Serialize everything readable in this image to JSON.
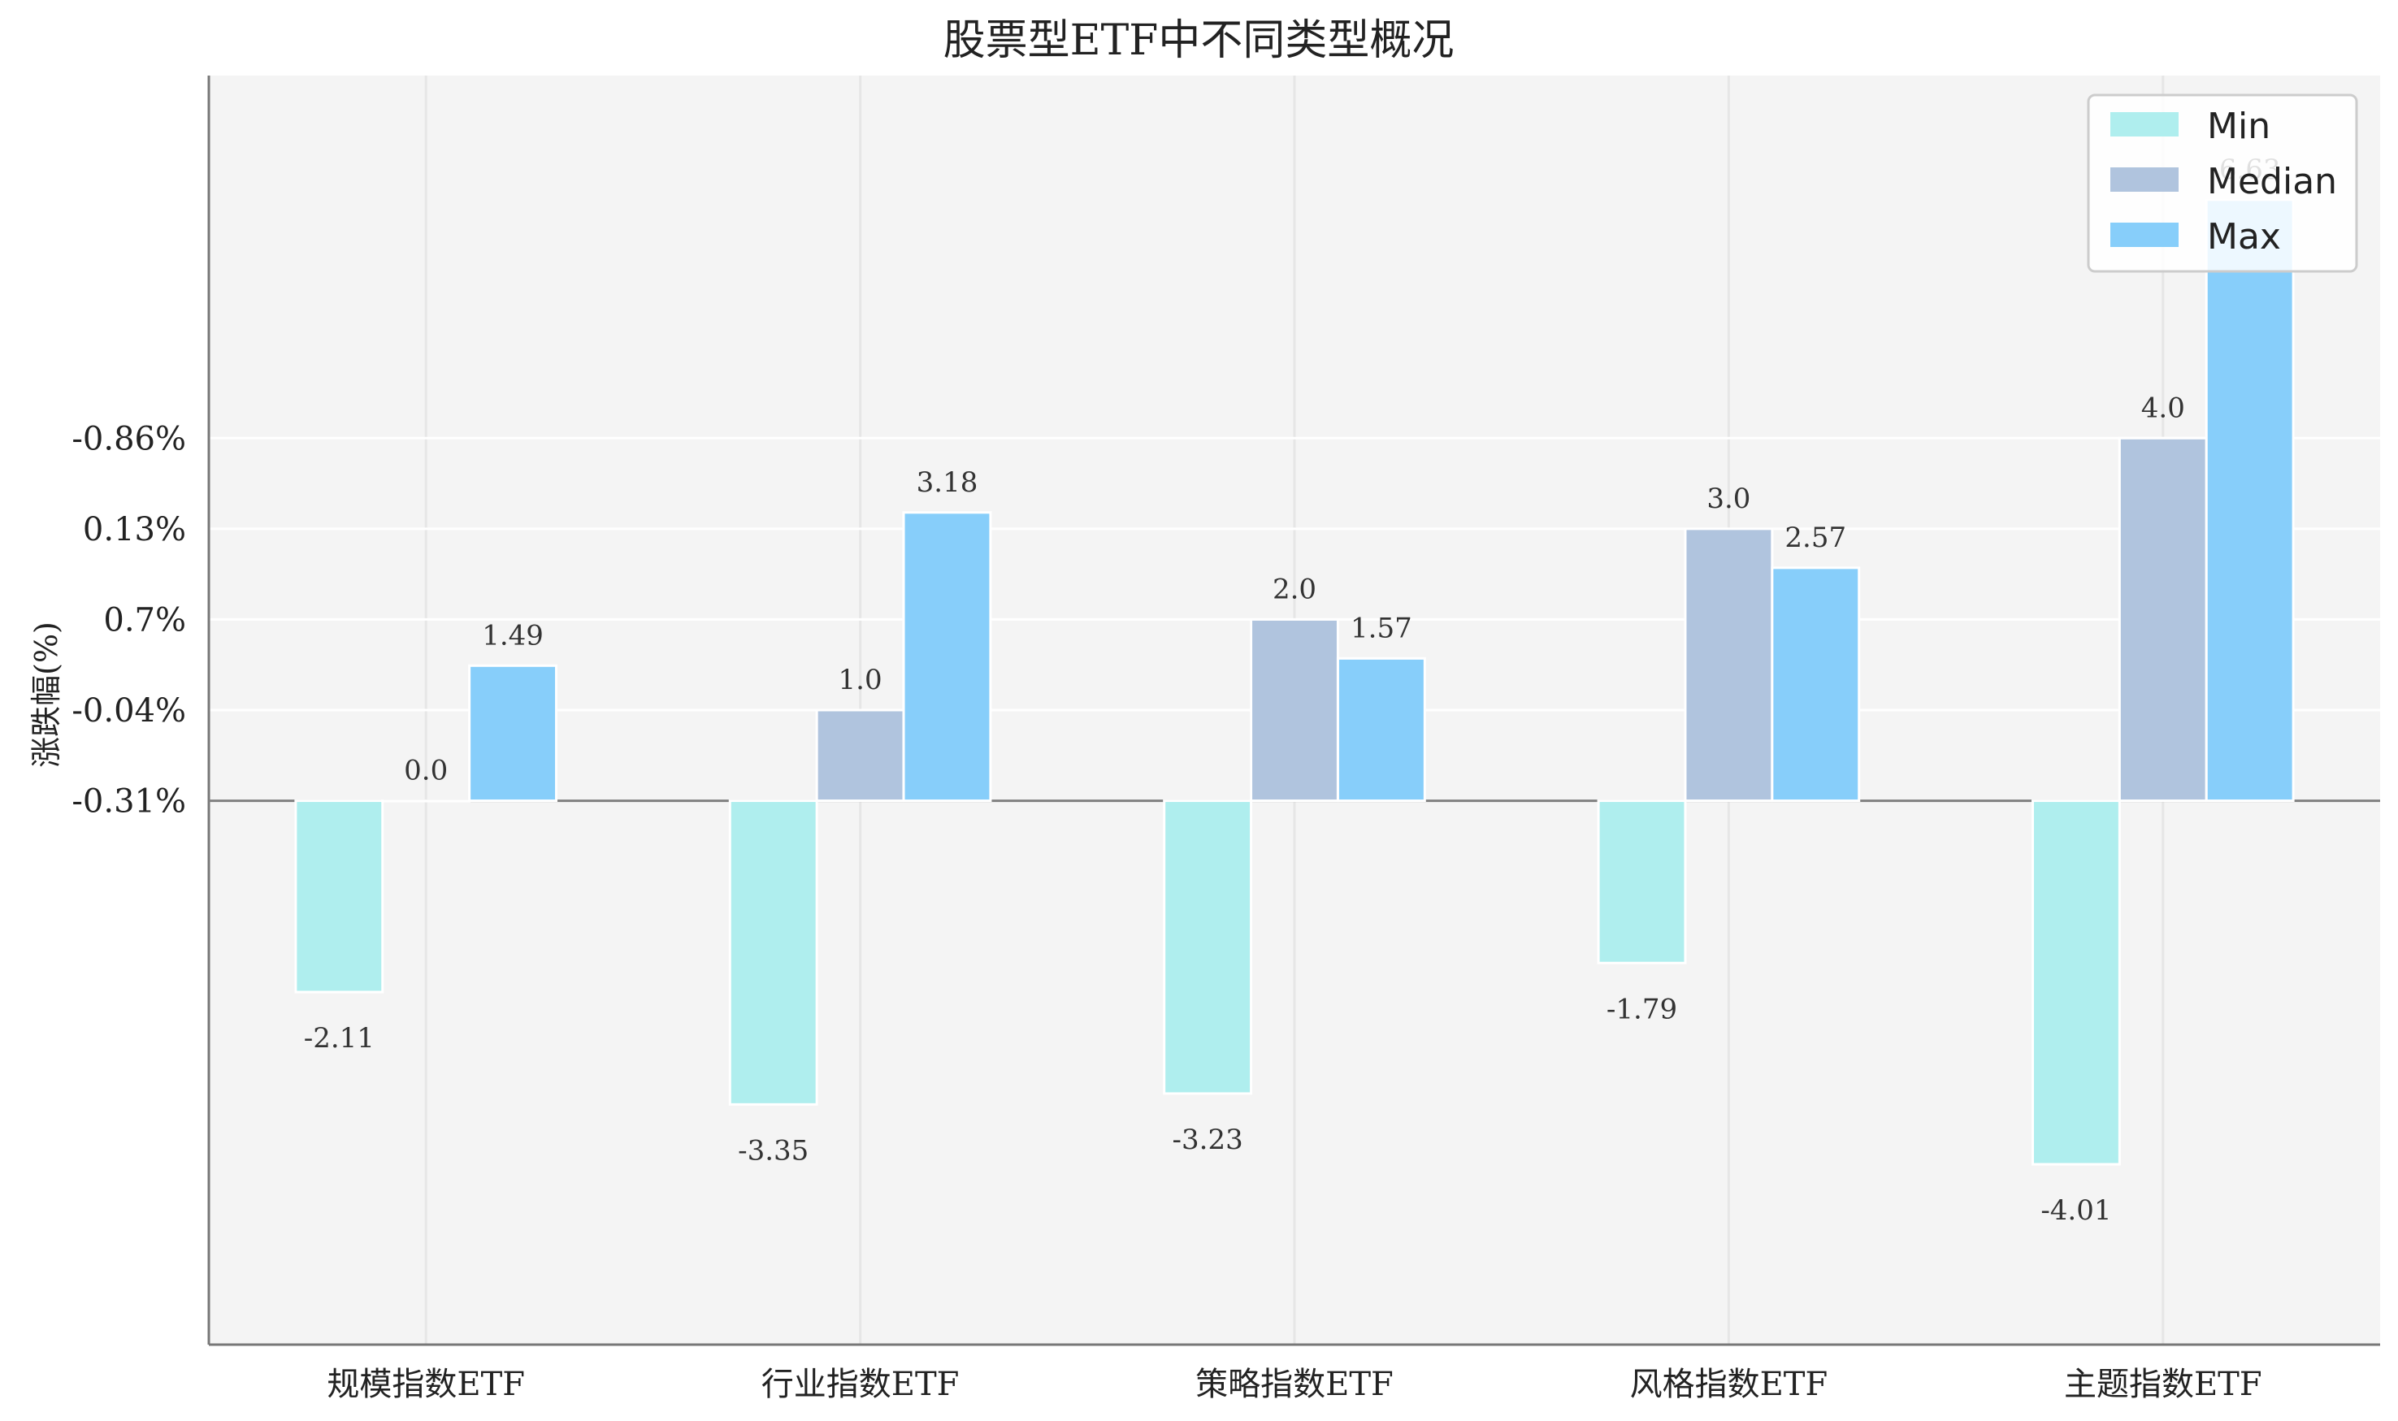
{
  "chart_data": {
    "type": "bar",
    "title": "股票型ETF中不同类型概况",
    "xlabel": "",
    "ylabel": "涨跌幅(%)",
    "categories": [
      "规模指数ETF",
      "行业指数ETF",
      "策略指数ETF",
      "风格指数ETF",
      "主题指数ETF"
    ],
    "series": [
      {
        "name": "Min",
        "values": [
          -2.11,
          -3.35,
          -3.23,
          -1.79,
          -4.01
        ],
        "color": "#AFEEEE"
      },
      {
        "name": "Median",
        "values": [
          0.0,
          1.0,
          2.0,
          3.0,
          4.0
        ],
        "color": "#B0C4DE"
      },
      {
        "name": "Max",
        "values": [
          1.49,
          3.18,
          1.57,
          2.57,
          6.63
        ],
        "color": "#87CEFA"
      }
    ],
    "data_labels": [
      [
        "-2.11",
        "-3.35",
        "-3.23",
        "-1.79",
        "-4.01"
      ],
      [
        "0.0",
        "1.0",
        "2.0",
        "3.0",
        "4.0"
      ],
      [
        "1.49",
        "3.18",
        "1.57",
        "2.57",
        "6.63"
      ]
    ],
    "yticks": [
      {
        "value": 0,
        "label": "-0.31%"
      },
      {
        "value": 1,
        "label": "-0.04%"
      },
      {
        "value": 2,
        "label": "0.7%"
      },
      {
        "value": 3,
        "label": "0.13%"
      },
      {
        "value": 4,
        "label": "-0.86%"
      }
    ],
    "ylim": [
      -6.0,
      8.0
    ],
    "grid": true,
    "legend_position": "top-right",
    "colors": {
      "plot_background": "#F4F4F4",
      "grid": "#E6E6E6",
      "axis": "#777777",
      "zero_line": "#808080"
    }
  }
}
